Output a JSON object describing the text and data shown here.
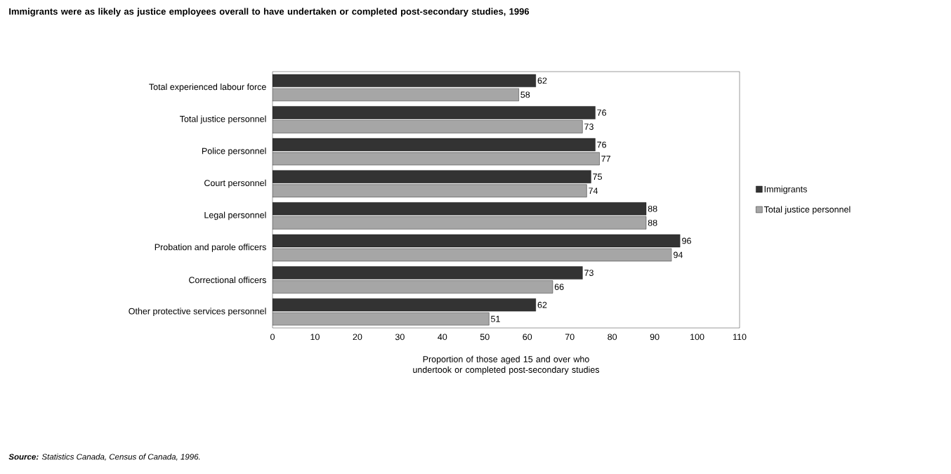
{
  "chart_data": {
    "type": "bar",
    "orientation": "horizontal",
    "title": "Immigrants were as likely as justice employees overall to have undertaken or completed post-secondary studies, 1996",
    "xlabel": "Proportion of those aged 15 and over who undertook or completed post-secondary studies",
    "categories": [
      "Total experienced labour force",
      "Total justice personnel",
      "Police personnel",
      "Court personnel",
      "Legal personnel",
      "Probation and parole officers",
      "Correctional officers",
      "Other protective services personnel"
    ],
    "series": [
      {
        "name": "Immigrants",
        "color": "#333333",
        "values": [
          62,
          76,
          76,
          75,
          88,
          96,
          73,
          62
        ]
      },
      {
        "name": "Total justice personnel",
        "color": "#a6a6a6",
        "values": [
          58,
          73,
          77,
          74,
          88,
          94,
          66,
          51
        ]
      }
    ],
    "xlim": [
      0,
      110
    ],
    "xticks": [
      0,
      10,
      20,
      30,
      40,
      50,
      60,
      70,
      80,
      90,
      100,
      110
    ],
    "data_labels": true,
    "legend": "right",
    "grid": false,
    "annotations": [
      "**Source:** Statistics Canada, Census of Canada, 1996."
    ]
  }
}
